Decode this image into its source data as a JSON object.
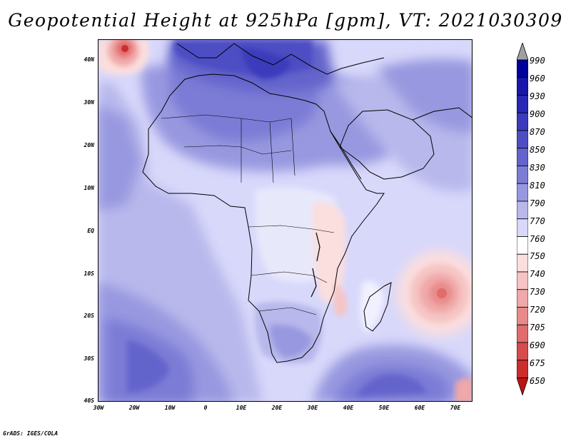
{
  "title": "Geopotential Height at 925hPa [gpm], VT: 2021030309",
  "credit": "GrADS: IGES/COLA",
  "map": {
    "lat_labels": [
      "40N",
      "30N",
      "20N",
      "10N",
      "EQ",
      "10S",
      "20S",
      "30S",
      "40S"
    ],
    "lon_labels": [
      "30W",
      "20W",
      "10W",
      "0",
      "10E",
      "20E",
      "30E",
      "40E",
      "50E",
      "60E",
      "70E"
    ],
    "extent": {
      "lon": [
        -30,
        75
      ],
      "lat": [
        -40,
        45
      ]
    }
  },
  "colorbar": {
    "levels": [
      "990",
      "960",
      "930",
      "900",
      "870",
      "850",
      "830",
      "810",
      "790",
      "770",
      "760",
      "750",
      "740",
      "730",
      "720",
      "705",
      "690",
      "675",
      "650"
    ],
    "colors": [
      "#a0a0a0",
      "#00009a",
      "#1818a8",
      "#2828b4",
      "#3b3bbc",
      "#4e4ec4",
      "#6464cc",
      "#7c7cd6",
      "#9898e0",
      "#b8b8ec",
      "#d8d8fb",
      "#ffffff",
      "#fbdede",
      "#f6c4c4",
      "#f0a8a8",
      "#e88a8a",
      "#e06c6c",
      "#d64c4c",
      "#cc2e2e",
      "#be1414"
    ]
  }
}
